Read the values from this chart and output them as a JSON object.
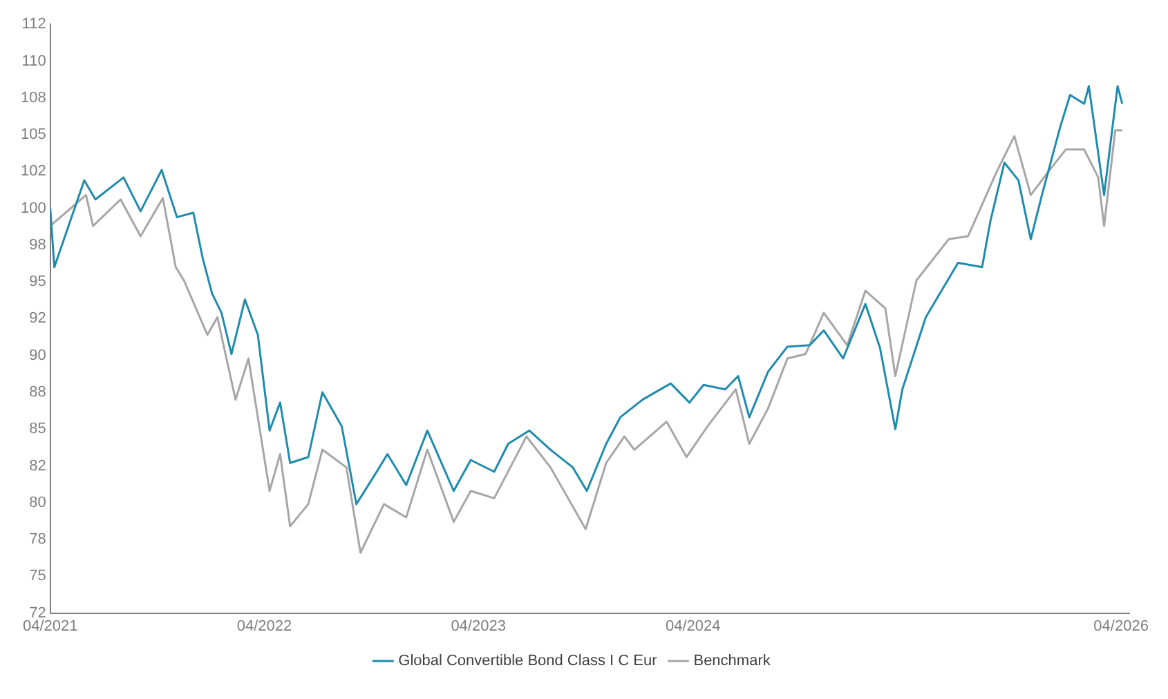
{
  "chart_data": {
    "type": "line",
    "xlim": [
      "2021-04-01",
      "2026-04-15"
    ],
    "xticks": [
      {
        "value": "2021-04-01",
        "label": "04/2021"
      },
      {
        "value": "2022-04-01",
        "label": "04/2022"
      },
      {
        "value": "2023-04-01",
        "label": "04/2023"
      },
      {
        "value": "2024-04-01",
        "label": "04/2024"
      },
      {
        "value": "2026-04-01",
        "label": "04/2026"
      }
    ],
    "ylim": [
      72.5,
      112.5
    ],
    "yticks": [
      {
        "value": 72.5,
        "label": "72"
      },
      {
        "value": 75,
        "label": "75"
      },
      {
        "value": 77.5,
        "label": "78"
      },
      {
        "value": 80,
        "label": "80"
      },
      {
        "value": 82.5,
        "label": "82"
      },
      {
        "value": 85,
        "label": "85"
      },
      {
        "value": 87.5,
        "label": "88"
      },
      {
        "value": 90,
        "label": "90"
      },
      {
        "value": 92.5,
        "label": "92"
      },
      {
        "value": 95,
        "label": "95"
      },
      {
        "value": 97.5,
        "label": "98"
      },
      {
        "value": 100,
        "label": "100"
      },
      {
        "value": 102.5,
        "label": "102"
      },
      {
        "value": 105,
        "label": "105"
      },
      {
        "value": 107.5,
        "label": "108"
      },
      {
        "value": 110,
        "label": "110"
      },
      {
        "value": 112.5,
        "label": "112"
      }
    ],
    "grid": false,
    "legend": "bottom",
    "marker": "none",
    "line_style": "solid",
    "series": [
      {
        "name": "Global Convertible Bond Class I C Eur",
        "color": "#1f8bad",
        "x": [
          "2021-04-01",
          "2021-04-08",
          "2021-05-29",
          "2021-06-17",
          "2021-08-04",
          "2021-09-02",
          "2021-10-08",
          "2021-11-03",
          "2021-12-01",
          "2021-12-17",
          "2022-01-02",
          "2022-01-18",
          "2022-02-04",
          "2022-02-27",
          "2022-03-21",
          "2022-04-10",
          "2022-04-28",
          "2022-05-15",
          "2022-06-15",
          "2022-07-09",
          "2022-08-11",
          "2022-09-05",
          "2022-10-05",
          "2022-10-28",
          "2022-11-29",
          "2023-01-04",
          "2023-02-18",
          "2023-03-19",
          "2023-04-28",
          "2023-05-22",
          "2023-06-27",
          "2023-08-02",
          "2023-09-09",
          "2023-10-03",
          "2023-11-05",
          "2023-11-29",
          "2024-01-06",
          "2024-02-23",
          "2024-03-26",
          "2024-04-19",
          "2024-05-26",
          "2024-06-17",
          "2024-07-06",
          "2024-08-07",
          "2024-09-09",
          "2024-10-17",
          "2024-11-10",
          "2024-12-13",
          "2025-01-20",
          "2025-02-14",
          "2025-03-12",
          "2025-03-24",
          "2025-05-03",
          "2025-06-27",
          "2025-08-07",
          "2025-08-21",
          "2025-09-14",
          "2025-10-08",
          "2025-10-29",
          "2025-11-17",
          "2025-12-18",
          "2026-01-04",
          "2026-01-28",
          "2026-02-05",
          "2026-03-03",
          "2026-03-26",
          "2026-04-03"
        ],
        "values": [
          100,
          96.0,
          101.9,
          100.6,
          102.1,
          99.8,
          102.6,
          99.4,
          99.7,
          96.6,
          94.2,
          92.9,
          90.1,
          93.8,
          91.4,
          84.9,
          86.8,
          82.7,
          83.1,
          87.5,
          85.2,
          79.9,
          81.8,
          83.3,
          81.2,
          84.9,
          80.8,
          82.9,
          82.1,
          84.0,
          84.9,
          83.6,
          82.4,
          80.8,
          84.0,
          85.8,
          87.0,
          88.1,
          86.8,
          88.0,
          87.7,
          88.6,
          85.8,
          88.9,
          90.6,
          90.7,
          91.7,
          89.8,
          93.5,
          90.5,
          85.0,
          87.7,
          92.6,
          96.3,
          96.0,
          99.1,
          103.1,
          101.9,
          97.9,
          100.9,
          105.5,
          107.7,
          107.1,
          108.3,
          100.9,
          108.3,
          107.1
        ]
      },
      {
        "name": "Benchmark",
        "color": "#a6a6a6",
        "x": [
          "2021-04-01",
          "2021-06-01",
          "2021-06-13",
          "2021-07-30",
          "2021-09-02",
          "2021-10-10",
          "2021-11-01",
          "2021-11-15",
          "2021-12-25",
          "2022-01-11",
          "2022-02-11",
          "2022-03-05",
          "2022-04-10",
          "2022-04-28",
          "2022-05-15",
          "2022-06-15",
          "2022-07-09",
          "2022-08-19",
          "2022-09-12",
          "2022-10-22",
          "2022-11-29",
          "2023-01-04",
          "2023-02-18",
          "2023-03-19",
          "2023-04-28",
          "2023-06-22",
          "2023-08-02",
          "2023-10-01",
          "2023-11-05",
          "2023-12-06",
          "2023-12-23",
          "2024-02-16",
          "2024-03-21",
          "2024-04-26",
          "2024-06-13",
          "2024-07-06",
          "2024-08-07",
          "2024-09-09",
          "2024-10-10",
          "2024-11-10",
          "2024-12-20",
          "2025-01-20",
          "2025-02-23",
          "2025-03-12",
          "2025-04-17",
          "2025-06-11",
          "2025-07-14",
          "2025-09-01",
          "2025-10-01",
          "2025-10-29",
          "2025-12-04",
          "2025-12-28",
          "2026-01-28",
          "2026-02-21",
          "2026-03-03",
          "2026-03-22",
          "2026-04-03"
        ],
        "values": [
          98.8,
          100.9,
          98.8,
          100.6,
          98.1,
          100.7,
          96.0,
          95.1,
          91.4,
          92.6,
          87.0,
          89.8,
          80.8,
          83.3,
          78.4,
          79.9,
          83.6,
          82.4,
          76.6,
          79.9,
          79.0,
          83.6,
          78.7,
          80.8,
          80.3,
          84.5,
          82.4,
          78.2,
          82.7,
          84.5,
          83.6,
          85.5,
          83.1,
          85.2,
          87.7,
          84.0,
          86.4,
          89.8,
          90.1,
          92.9,
          90.7,
          94.4,
          93.2,
          88.6,
          95.1,
          97.9,
          98.1,
          102.5,
          104.9,
          100.9,
          102.8,
          104.0,
          104.0,
          102.1,
          98.8,
          105.3,
          105.3
        ]
      }
    ]
  }
}
